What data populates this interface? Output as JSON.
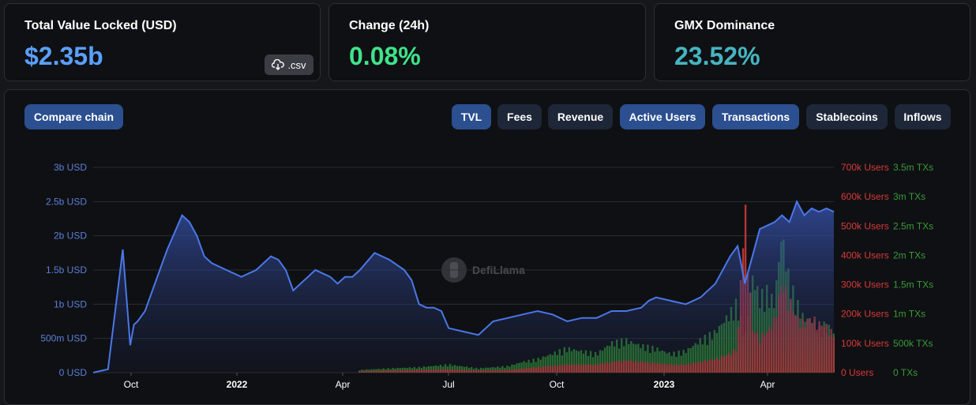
{
  "stats": [
    {
      "label": "Total Value Locked (USD)",
      "value": "$2.35b",
      "color": "#5aa0ff"
    },
    {
      "label": "Change (24h)",
      "value": "0.08%",
      "color": "#3fe38a"
    },
    {
      "label": "GMX Dominance",
      "value": "23.52%",
      "color": "#46b4c0"
    }
  ],
  "csv_label": ".csv",
  "compare_label": "Compare chain",
  "metric_buttons": [
    {
      "label": "TVL",
      "active": true
    },
    {
      "label": "Fees",
      "active": false
    },
    {
      "label": "Revenue",
      "active": false
    },
    {
      "label": "Active Users",
      "active": true
    },
    {
      "label": "Transactions",
      "active": true
    },
    {
      "label": "Stablecoins",
      "active": false
    },
    {
      "label": "Inflows",
      "active": false
    }
  ],
  "watermark": "DefiLlama",
  "chart_data": {
    "type": "line",
    "x_ticks": [
      "Oct",
      "2022",
      "Apr",
      "Jul",
      "Oct",
      "2023",
      "Apr"
    ],
    "y_left": {
      "ticks": [
        "0 USD",
        "500m USD",
        "1b USD",
        "1.5b USD",
        "2b USD",
        "2.5b USD",
        "3b USD"
      ],
      "ylim": [
        0,
        3
      ],
      "color": "#5b7fd9"
    },
    "y_users": {
      "ticks": [
        "0 Users",
        "100k Users",
        "200k Users",
        "300k Users",
        "400k Users",
        "500k Users",
        "600k Users",
        "700k Users"
      ],
      "ylim": [
        0,
        700
      ],
      "color": "#d63a3a"
    },
    "y_txs": {
      "ticks": [
        "0 TXs",
        "500k TXs",
        "1m TXs",
        "1.5m TXs",
        "2m TXs",
        "2.5m TXs",
        "3m TXs",
        "3.5m TXs"
      ],
      "ylim": [
        0,
        3.5
      ],
      "color": "#3a9a3a"
    },
    "series": [
      {
        "name": "TVL",
        "unit": "b USD",
        "x": [
          0,
          0.02,
          0.04,
          0.05,
          0.055,
          0.06,
          0.07,
          0.08,
          0.1,
          0.12,
          0.13,
          0.14,
          0.15,
          0.16,
          0.18,
          0.2,
          0.22,
          0.24,
          0.25,
          0.26,
          0.27,
          0.28,
          0.3,
          0.32,
          0.33,
          0.34,
          0.35,
          0.36,
          0.38,
          0.4,
          0.42,
          0.43,
          0.44,
          0.45,
          0.46,
          0.47,
          0.48,
          0.5,
          0.52,
          0.54,
          0.56,
          0.58,
          0.6,
          0.62,
          0.64,
          0.66,
          0.68,
          0.7,
          0.72,
          0.74,
          0.75,
          0.76,
          0.78,
          0.8,
          0.82,
          0.84,
          0.86,
          0.87,
          0.88,
          0.89,
          0.9,
          0.91,
          0.92,
          0.93,
          0.94,
          0.95,
          0.96,
          0.97,
          0.98,
          0.99,
          1.0
        ],
        "y": [
          0,
          0.05,
          1.8,
          0.4,
          0.7,
          0.75,
          0.9,
          1.2,
          1.8,
          2.3,
          2.2,
          2.0,
          1.7,
          1.6,
          1.5,
          1.4,
          1.5,
          1.7,
          1.65,
          1.5,
          1.2,
          1.3,
          1.5,
          1.4,
          1.3,
          1.4,
          1.4,
          1.5,
          1.75,
          1.65,
          1.5,
          1.35,
          1.0,
          0.95,
          0.95,
          0.9,
          0.65,
          0.6,
          0.55,
          0.75,
          0.8,
          0.85,
          0.9,
          0.85,
          0.75,
          0.8,
          0.8,
          0.9,
          0.9,
          0.95,
          1.05,
          1.1,
          1.05,
          1.0,
          1.1,
          1.3,
          1.7,
          1.85,
          1.3,
          1.7,
          2.1,
          2.15,
          2.2,
          2.3,
          2.2,
          2.5,
          2.3,
          2.4,
          2.35,
          2.4,
          2.35
        ]
      },
      {
        "name": "Transactions",
        "unit": "m TXs",
        "x": [
          0.36,
          0.4,
          0.44,
          0.48,
          0.52,
          0.56,
          0.58,
          0.6,
          0.62,
          0.64,
          0.66,
          0.68,
          0.7,
          0.72,
          0.74,
          0.76,
          0.78,
          0.8,
          0.82,
          0.84,
          0.86,
          0.87,
          0.88,
          0.89,
          0.9,
          0.91,
          0.92,
          0.93,
          0.94,
          0.95,
          0.96,
          0.97,
          0.98,
          0.99,
          1.0
        ],
        "y": [
          0.05,
          0.08,
          0.1,
          0.15,
          0.08,
          0.12,
          0.2,
          0.25,
          0.35,
          0.45,
          0.4,
          0.35,
          0.55,
          0.6,
          0.5,
          0.45,
          0.35,
          0.4,
          0.6,
          0.75,
          1.1,
          1.3,
          0.6,
          1.8,
          1.4,
          1.5,
          1.3,
          2.6,
          1.7,
          1.3,
          1.0,
          1.0,
          0.8,
          0.9,
          0.7
        ]
      },
      {
        "name": "Active Users",
        "unit": "k Users",
        "x": [
          0.36,
          0.4,
          0.44,
          0.48,
          0.52,
          0.56,
          0.58,
          0.6,
          0.62,
          0.64,
          0.66,
          0.68,
          0.7,
          0.72,
          0.74,
          0.76,
          0.78,
          0.8,
          0.82,
          0.84,
          0.86,
          0.87,
          0.88,
          0.89,
          0.9,
          0.91,
          0.92,
          0.93,
          0.94,
          0.95,
          0.96,
          0.97,
          0.98,
          0.99,
          1.0
        ],
        "y": [
          5,
          8,
          10,
          12,
          8,
          10,
          15,
          20,
          25,
          30,
          30,
          30,
          40,
          45,
          40,
          35,
          30,
          30,
          40,
          50,
          70,
          90,
          620,
          160,
          130,
          150,
          190,
          330,
          270,
          200,
          180,
          200,
          180,
          170,
          140
        ]
      }
    ]
  }
}
